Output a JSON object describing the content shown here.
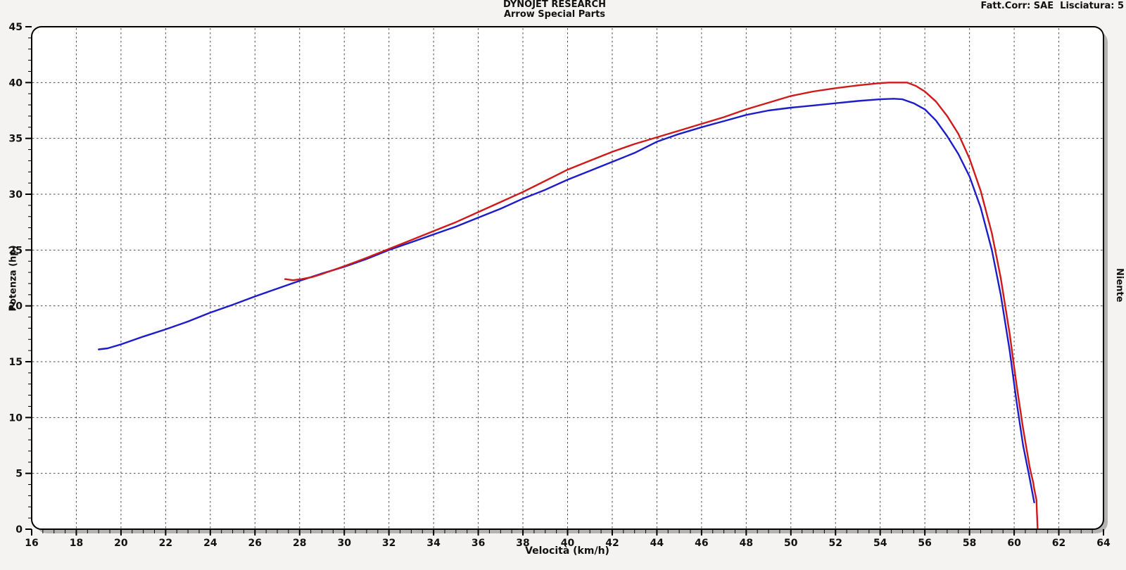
{
  "header": {
    "title": "DYNOJET RESEARCH",
    "subtitle": "Arrow Special Parts",
    "correction_label": "Fatt.Corr: SAE  Lisciatura: 5"
  },
  "right_axis_label": "Niente",
  "chart_data": {
    "type": "line",
    "title": "DYNOJET RESEARCH",
    "subtitle": "Arrow Special Parts",
    "xlabel": "Velocità (km/h)",
    "ylabel": "Potenza (hp)",
    "xlim": [
      16,
      64
    ],
    "ylim": [
      0,
      45
    ],
    "x_major_step": 2,
    "x_minor_step": 0.5,
    "y_major_step": 5,
    "y_minor_step": 1,
    "grid": "dashed on major ticks",
    "legend_position": "none",
    "plot_bg": "#ffffff",
    "grid_color": "#4a4a4a",
    "border_color": "#000000",
    "shadow_color": "#b3b3b3",
    "series": [
      {
        "name": "run-blue",
        "color": "#1c1cc8",
        "points": [
          [
            19.0,
            16.1
          ],
          [
            19.4,
            16.2
          ],
          [
            20,
            16.55
          ],
          [
            21,
            17.25
          ],
          [
            22,
            17.9
          ],
          [
            23,
            18.6
          ],
          [
            24,
            19.4
          ],
          [
            25,
            20.1
          ],
          [
            26,
            20.85
          ],
          [
            27,
            21.55
          ],
          [
            28,
            22.25
          ],
          [
            29,
            22.9
          ],
          [
            30,
            23.5
          ],
          [
            31,
            24.2
          ],
          [
            32,
            25.0
          ],
          [
            33,
            25.7
          ],
          [
            34,
            26.4
          ],
          [
            35,
            27.1
          ],
          [
            36,
            27.9
          ],
          [
            37,
            28.7
          ],
          [
            38,
            29.6
          ],
          [
            39,
            30.4
          ],
          [
            40,
            31.3
          ],
          [
            41,
            32.1
          ],
          [
            42,
            32.9
          ],
          [
            43,
            33.7
          ],
          [
            44,
            34.7
          ],
          [
            45,
            35.4
          ],
          [
            46,
            36.0
          ],
          [
            47,
            36.55
          ],
          [
            48,
            37.1
          ],
          [
            49,
            37.5
          ],
          [
            50,
            37.75
          ],
          [
            51,
            37.95
          ],
          [
            52,
            38.15
          ],
          [
            53,
            38.35
          ],
          [
            54,
            38.5
          ],
          [
            54.6,
            38.55
          ],
          [
            55,
            38.5
          ],
          [
            55.5,
            38.15
          ],
          [
            56,
            37.6
          ],
          [
            56.5,
            36.6
          ],
          [
            57,
            35.2
          ],
          [
            57.5,
            33.6
          ],
          [
            58,
            31.6
          ],
          [
            58.5,
            28.8
          ],
          [
            59,
            25.0
          ],
          [
            59.4,
            21.0
          ],
          [
            59.8,
            16.0
          ],
          [
            60.1,
            11.5
          ],
          [
            60.4,
            7.5
          ],
          [
            60.7,
            4.5
          ],
          [
            60.9,
            2.4
          ]
        ]
      },
      {
        "name": "run-red",
        "color": "#cf1a1a",
        "points": [
          [
            27.35,
            22.4
          ],
          [
            27.7,
            22.3
          ],
          [
            28.1,
            22.4
          ],
          [
            28.6,
            22.6
          ],
          [
            29,
            22.85
          ],
          [
            30,
            23.55
          ],
          [
            31,
            24.3
          ],
          [
            32,
            25.1
          ],
          [
            33,
            25.9
          ],
          [
            34,
            26.7
          ],
          [
            35,
            27.5
          ],
          [
            36,
            28.4
          ],
          [
            37,
            29.3
          ],
          [
            38,
            30.2
          ],
          [
            39,
            31.2
          ],
          [
            40,
            32.2
          ],
          [
            41,
            33.0
          ],
          [
            42,
            33.8
          ],
          [
            43,
            34.5
          ],
          [
            44,
            35.1
          ],
          [
            45,
            35.7
          ],
          [
            46,
            36.3
          ],
          [
            47,
            36.9
          ],
          [
            48,
            37.6
          ],
          [
            49,
            38.2
          ],
          [
            50,
            38.8
          ],
          [
            51,
            39.2
          ],
          [
            52,
            39.5
          ],
          [
            53,
            39.75
          ],
          [
            54,
            39.95
          ],
          [
            54.4,
            40.0
          ],
          [
            55.2,
            40.0
          ],
          [
            55.6,
            39.7
          ],
          [
            56,
            39.2
          ],
          [
            56.5,
            38.3
          ],
          [
            57,
            37.0
          ],
          [
            57.5,
            35.4
          ],
          [
            58,
            33.2
          ],
          [
            58.5,
            30.3
          ],
          [
            59,
            26.5
          ],
          [
            59.4,
            22.5
          ],
          [
            59.8,
            17.5
          ],
          [
            60.1,
            13.0
          ],
          [
            60.4,
            9.0
          ],
          [
            60.7,
            5.5
          ],
          [
            60.85,
            4.2
          ],
          [
            60.9,
            3.6
          ],
          [
            61.0,
            2.6
          ],
          [
            61.02,
            1.5
          ],
          [
            61.05,
            0.05
          ]
        ]
      }
    ]
  }
}
